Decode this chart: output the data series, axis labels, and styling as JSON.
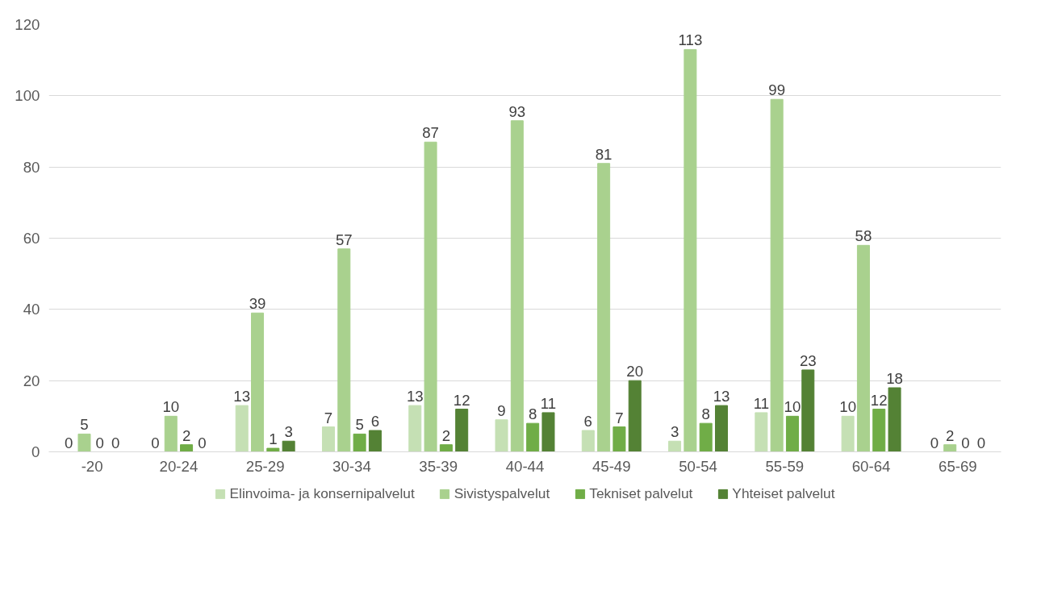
{
  "chart_data": {
    "type": "bar",
    "categories": [
      "-20",
      "20-24",
      "25-29",
      "30-34",
      "35-39",
      "40-44",
      "45-49",
      "50-54",
      "55-59",
      "60-64",
      "65-69"
    ],
    "series": [
      {
        "name": "Elinvoima- ja konsernipalvelut",
        "color": "#c5e0b4",
        "values": [
          0,
          0,
          13,
          7,
          13,
          9,
          6,
          3,
          11,
          10,
          0
        ]
      },
      {
        "name": "Sivistyspalvelut",
        "color": "#a9d18e",
        "values": [
          5,
          10,
          39,
          57,
          87,
          93,
          81,
          113,
          99,
          58,
          2
        ]
      },
      {
        "name": "Tekniset palvelut",
        "color": "#70ad47",
        "values": [
          0,
          2,
          1,
          5,
          2,
          8,
          7,
          8,
          10,
          12,
          0
        ]
      },
      {
        "name": "Yhteiset palvelut",
        "color": "#548235",
        "values": [
          0,
          0,
          3,
          6,
          12,
          11,
          20,
          13,
          23,
          18,
          0
        ]
      }
    ],
    "ylim": [
      0,
      120
    ],
    "yticks": [
      0,
      20,
      40,
      60,
      80,
      100,
      120
    ],
    "grid": "y",
    "legend": "bottom",
    "data_labels": true
  }
}
